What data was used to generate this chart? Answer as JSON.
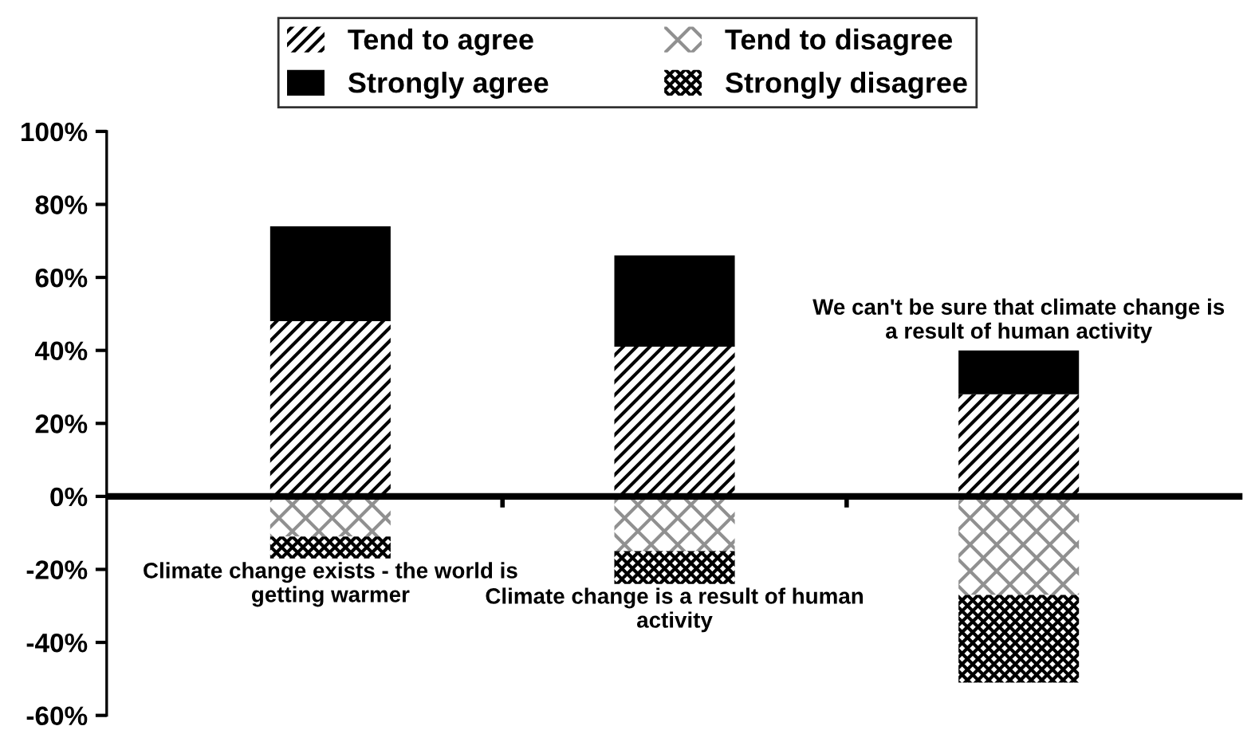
{
  "chart_data": {
    "type": "bar",
    "stacked": true,
    "categories": [
      "Climate change exists - the world is getting warmer",
      "Climate change is a result of human activity",
      "We can't be sure that climate change is a result of human activity"
    ],
    "series": [
      {
        "name": "Tend to agree",
        "color": "#000000",
        "values": [
          48,
          41,
          28
        ]
      },
      {
        "name": "Strongly agree",
        "color": "#000000",
        "values": [
          26,
          25,
          12
        ]
      },
      {
        "name": "Tend to disagree",
        "color": "#000000",
        "values": [
          -11,
          -15,
          -27
        ]
      },
      {
        "name": "Strongly disagree",
        "color": "#000000",
        "values": [
          -6,
          -9,
          -24
        ]
      }
    ],
    "ylim": [
      -60,
      100
    ],
    "yticks": [
      {
        "value": -60,
        "label": "-60%"
      },
      {
        "value": -40,
        "label": "-40%"
      },
      {
        "value": -20,
        "label": "-20%"
      },
      {
        "value": 0,
        "label": "0%"
      },
      {
        "value": 20,
        "label": "20%"
      },
      {
        "value": 40,
        "label": "40%"
      },
      {
        "value": 60,
        "label": "60%"
      },
      {
        "value": 80,
        "label": "80%"
      },
      {
        "value": 100,
        "label": "100%"
      }
    ],
    "ref_lines": [
      {
        "axis": "y",
        "value": 0,
        "color": "#000000"
      }
    ],
    "legend": "top"
  }
}
